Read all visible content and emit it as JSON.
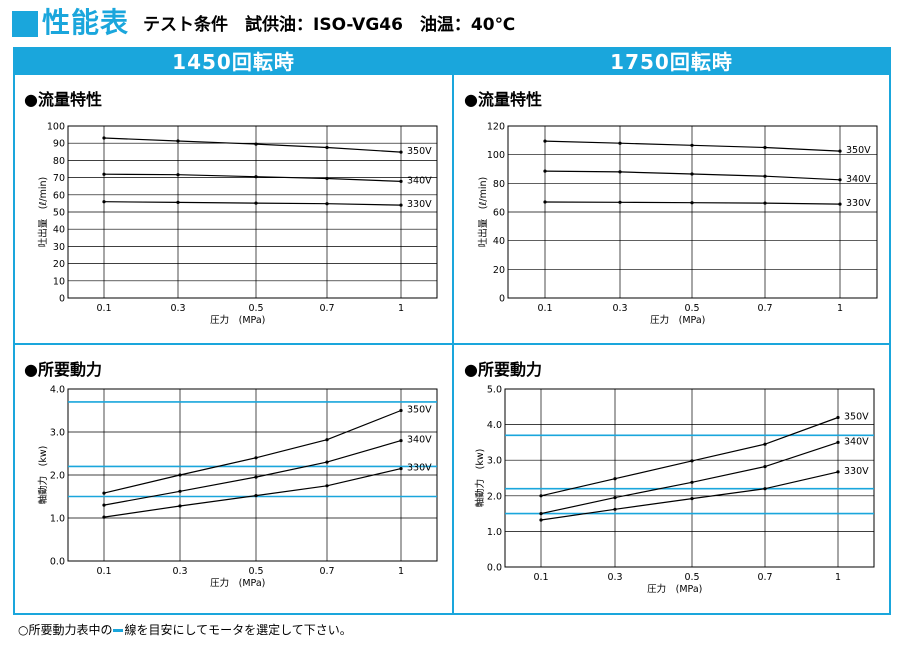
{
  "header": {
    "title": "性能表",
    "condition": "テスト条件　試供油：ISO-VG46　油温：40℃"
  },
  "columns": [
    {
      "label": "1450回転時"
    },
    {
      "label": "1750回転時"
    }
  ],
  "sections": {
    "flow": "●流量特性",
    "power": "●所要動力"
  },
  "footnote": {
    "before": "○所要動力表中の",
    "after": "線を目安にしてモータを選定して下さい。"
  },
  "colors": {
    "accent": "#1aa6dc",
    "line": "#000000",
    "grid": "#000000"
  },
  "chart_data": [
    {
      "id": "flow-1450",
      "type": "line",
      "x": [
        0.1,
        0.3,
        0.5,
        0.7,
        1
      ],
      "x_tick_labels": [
        "0.1",
        "0.3",
        "0.5",
        "0.7",
        "1"
      ],
      "xlabel": "圧力　(MPa)",
      "ylabel": "吐出量　(ℓ/min)",
      "ylim": [
        0,
        100
      ],
      "y_ticks": [
        0,
        10,
        20,
        30,
        40,
        50,
        60,
        70,
        80,
        90,
        100
      ],
      "y_tick_labels": [
        "0",
        "10",
        "20",
        "30",
        "40",
        "50",
        "60",
        "70",
        "80",
        "90",
        "100"
      ],
      "series": [
        {
          "name": "350V",
          "values": [
            93,
            91.3,
            89.5,
            87.5,
            84.8
          ]
        },
        {
          "name": "340V",
          "values": [
            72,
            71.7,
            70.5,
            69.5,
            67.8
          ]
        },
        {
          "name": "330V",
          "values": [
            56,
            55.6,
            55.2,
            54.8,
            54
          ]
        }
      ],
      "reference_lines": []
    },
    {
      "id": "flow-1750",
      "type": "line",
      "x": [
        0.1,
        0.3,
        0.5,
        0.7,
        1
      ],
      "x_tick_labels": [
        "0.1",
        "0.3",
        "0.5",
        "0.7",
        "1"
      ],
      "xlabel": "圧力　(MPa)",
      "ylabel": "吐出量　(ℓ/min)",
      "ylim": [
        0,
        120
      ],
      "y_ticks": [
        0,
        20,
        40,
        60,
        80,
        100,
        120
      ],
      "y_tick_labels": [
        "0",
        "20",
        "40",
        "60",
        "80",
        "100",
        "120"
      ],
      "series": [
        {
          "name": "350V",
          "values": [
            109.5,
            108,
            106.5,
            105,
            102.5
          ]
        },
        {
          "name": "340V",
          "values": [
            88.5,
            88,
            86.5,
            85,
            82.5
          ]
        },
        {
          "name": "330V",
          "values": [
            67,
            66.8,
            66.5,
            66.2,
            65.5
          ]
        }
      ],
      "reference_lines": []
    },
    {
      "id": "power-1450",
      "type": "line",
      "x": [
        0.1,
        0.3,
        0.5,
        0.7,
        1
      ],
      "x_tick_labels": [
        "0.1",
        "0.3",
        "0.5",
        "0.7",
        "1"
      ],
      "xlabel": "圧力　(MPa)",
      "ylabel": "軸動力　(kw)",
      "ylim": [
        0,
        4
      ],
      "y_ticks": [
        0,
        1,
        2,
        3,
        4
      ],
      "y_tick_labels": [
        "0.0",
        "1.0",
        "2.0",
        "3.0",
        "4.0"
      ],
      "series": [
        {
          "name": "350V",
          "values": [
            1.58,
            2.0,
            2.4,
            2.82,
            3.5
          ]
        },
        {
          "name": "340V",
          "values": [
            1.3,
            1.62,
            1.95,
            2.3,
            2.8
          ]
        },
        {
          "name": "330V",
          "values": [
            1.02,
            1.28,
            1.52,
            1.75,
            2.15
          ]
        }
      ],
      "reference_lines": [
        3.7,
        2.2,
        1.5
      ]
    },
    {
      "id": "power-1750",
      "type": "line",
      "x": [
        0.1,
        0.3,
        0.5,
        0.7,
        1
      ],
      "x_tick_labels": [
        "0.1",
        "0.3",
        "0.5",
        "0.7",
        "1"
      ],
      "xlabel": "圧力　(MPa)",
      "ylabel": "軸動力　(kw)",
      "ylim": [
        0,
        5
      ],
      "y_ticks": [
        0,
        1,
        2,
        3,
        4,
        5
      ],
      "y_tick_labels": [
        "0.0",
        "1.0",
        "2.0",
        "3.0",
        "4.0",
        "5.0"
      ],
      "series": [
        {
          "name": "350V",
          "values": [
            2.0,
            2.48,
            2.98,
            3.45,
            4.2
          ]
        },
        {
          "name": "340V",
          "values": [
            1.5,
            1.95,
            2.38,
            2.82,
            3.5
          ]
        },
        {
          "name": "330V",
          "values": [
            1.32,
            1.62,
            1.92,
            2.2,
            2.67
          ]
        }
      ],
      "reference_lines": [
        3.7,
        2.2,
        1.5
      ]
    }
  ]
}
